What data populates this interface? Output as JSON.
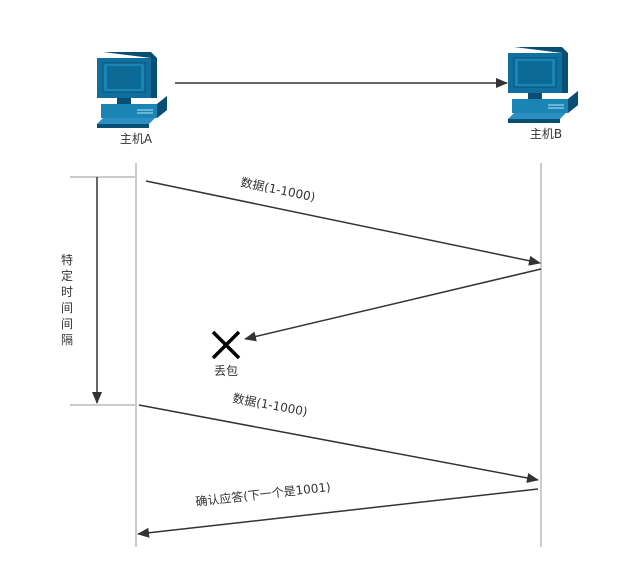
{
  "hosts": {
    "a": {
      "label": "主机A"
    },
    "b": {
      "label": "主机B"
    }
  },
  "interval": {
    "chars": [
      "特",
      "定",
      "时",
      "间",
      "间",
      "隔"
    ]
  },
  "messages": {
    "data_first": "数据(1-1000)",
    "data_second": "数据(1-1000)",
    "ack": "确认应答(下一个是1001)"
  },
  "loss": {
    "label": "丢包"
  },
  "colors": {
    "line": "#333333",
    "lifeline": "#999999",
    "screen": "#0b6a96",
    "screen_inner": "#1a84b5",
    "body": "#0f6f9f",
    "body_light": "#2b90c1",
    "body_dark": "#0a4f73"
  }
}
